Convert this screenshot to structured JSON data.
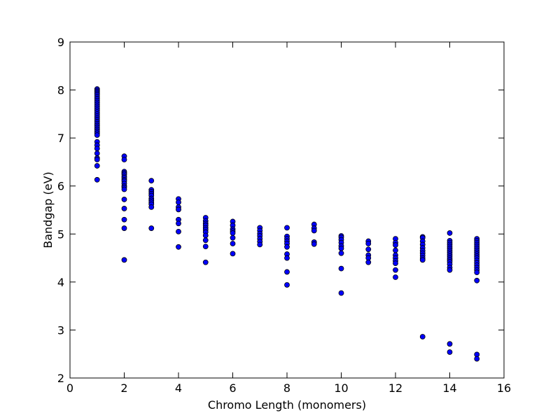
{
  "chart_data": {
    "type": "scatter",
    "title": "",
    "xlabel": "Chromo Length (monomers)",
    "ylabel": "Bandgap (eV)",
    "xlim": [
      0,
      16
    ],
    "ylim": [
      2,
      9
    ],
    "xticks": [
      "0",
      "2",
      "4",
      "6",
      "8",
      "10",
      "12",
      "14",
      "16"
    ],
    "yticks": [
      "2",
      "3",
      "4",
      "5",
      "6",
      "7",
      "8",
      "9"
    ],
    "grid": false,
    "legend": "none",
    "marker_color": "#0000ff",
    "marker_edge_color": "#000000",
    "series": [
      {
        "points": [
          {
            "x": 1,
            "y": 8.02
          },
          {
            "x": 1,
            "y": 7.99
          },
          {
            "x": 1,
            "y": 7.96
          },
          {
            "x": 1,
            "y": 7.93
          },
          {
            "x": 1,
            "y": 7.9
          },
          {
            "x": 1,
            "y": 7.86
          },
          {
            "x": 1,
            "y": 7.82
          },
          {
            "x": 1,
            "y": 7.78
          },
          {
            "x": 1,
            "y": 7.74
          },
          {
            "x": 1,
            "y": 7.7
          },
          {
            "x": 1,
            "y": 7.66
          },
          {
            "x": 1,
            "y": 7.62
          },
          {
            "x": 1,
            "y": 7.58
          },
          {
            "x": 1,
            "y": 7.54
          },
          {
            "x": 1,
            "y": 7.5
          },
          {
            "x": 1,
            "y": 7.46
          },
          {
            "x": 1,
            "y": 7.42
          },
          {
            "x": 1,
            "y": 7.38
          },
          {
            "x": 1,
            "y": 7.34
          },
          {
            "x": 1,
            "y": 7.3
          },
          {
            "x": 1,
            "y": 7.26
          },
          {
            "x": 1,
            "y": 7.22
          },
          {
            "x": 1,
            "y": 7.18
          },
          {
            "x": 1,
            "y": 7.14
          },
          {
            "x": 1,
            "y": 7.1
          },
          {
            "x": 1,
            "y": 7.06
          },
          {
            "x": 1,
            "y": 6.92
          },
          {
            "x": 1,
            "y": 6.85
          },
          {
            "x": 1,
            "y": 6.78
          },
          {
            "x": 1,
            "y": 6.68
          },
          {
            "x": 1,
            "y": 6.58
          },
          {
            "x": 1,
            "y": 6.55
          },
          {
            "x": 1,
            "y": 6.42
          },
          {
            "x": 1,
            "y": 6.13
          },
          {
            "x": 2,
            "y": 6.62
          },
          {
            "x": 2,
            "y": 6.55
          },
          {
            "x": 2,
            "y": 6.3
          },
          {
            "x": 2,
            "y": 6.27
          },
          {
            "x": 2,
            "y": 6.24
          },
          {
            "x": 2,
            "y": 6.2
          },
          {
            "x": 2,
            "y": 6.17
          },
          {
            "x": 2,
            "y": 6.13
          },
          {
            "x": 2,
            "y": 6.1
          },
          {
            "x": 2,
            "y": 6.05
          },
          {
            "x": 2,
            "y": 6.0
          },
          {
            "x": 2,
            "y": 5.97
          },
          {
            "x": 2,
            "y": 5.93
          },
          {
            "x": 2,
            "y": 5.72
          },
          {
            "x": 2,
            "y": 5.53
          },
          {
            "x": 2,
            "y": 5.3
          },
          {
            "x": 2,
            "y": 5.12
          },
          {
            "x": 2,
            "y": 4.46
          },
          {
            "x": 3,
            "y": 6.11
          },
          {
            "x": 3,
            "y": 5.92
          },
          {
            "x": 3,
            "y": 5.88
          },
          {
            "x": 3,
            "y": 5.84
          },
          {
            "x": 3,
            "y": 5.8
          },
          {
            "x": 3,
            "y": 5.74
          },
          {
            "x": 3,
            "y": 5.7
          },
          {
            "x": 3,
            "y": 5.66
          },
          {
            "x": 3,
            "y": 5.62
          },
          {
            "x": 3,
            "y": 5.56
          },
          {
            "x": 3,
            "y": 5.12
          },
          {
            "x": 4,
            "y": 5.73
          },
          {
            "x": 4,
            "y": 5.66
          },
          {
            "x": 4,
            "y": 5.56
          },
          {
            "x": 4,
            "y": 5.51
          },
          {
            "x": 4,
            "y": 5.3
          },
          {
            "x": 4,
            "y": 5.22
          },
          {
            "x": 4,
            "y": 5.05
          },
          {
            "x": 4,
            "y": 4.73
          },
          {
            "x": 5,
            "y": 5.34
          },
          {
            "x": 5,
            "y": 5.27
          },
          {
            "x": 5,
            "y": 5.22
          },
          {
            "x": 5,
            "y": 5.18
          },
          {
            "x": 5,
            "y": 5.13
          },
          {
            "x": 5,
            "y": 5.09
          },
          {
            "x": 5,
            "y": 5.04
          },
          {
            "x": 5,
            "y": 4.97
          },
          {
            "x": 5,
            "y": 4.87
          },
          {
            "x": 5,
            "y": 4.74
          },
          {
            "x": 5,
            "y": 4.41
          },
          {
            "x": 6,
            "y": 5.26
          },
          {
            "x": 6,
            "y": 5.18
          },
          {
            "x": 6,
            "y": 5.1
          },
          {
            "x": 6,
            "y": 5.06
          },
          {
            "x": 6,
            "y": 5.02
          },
          {
            "x": 6,
            "y": 4.92
          },
          {
            "x": 6,
            "y": 4.8
          },
          {
            "x": 6,
            "y": 4.59
          },
          {
            "x": 7,
            "y": 5.13
          },
          {
            "x": 7,
            "y": 5.07
          },
          {
            "x": 7,
            "y": 5.01
          },
          {
            "x": 7,
            "y": 4.96
          },
          {
            "x": 7,
            "y": 4.9
          },
          {
            "x": 7,
            "y": 4.84
          },
          {
            "x": 7,
            "y": 4.78
          },
          {
            "x": 8,
            "y": 5.13
          },
          {
            "x": 8,
            "y": 4.95
          },
          {
            "x": 8,
            "y": 4.9
          },
          {
            "x": 8,
            "y": 4.85
          },
          {
            "x": 8,
            "y": 4.8
          },
          {
            "x": 8,
            "y": 4.73
          },
          {
            "x": 8,
            "y": 4.58
          },
          {
            "x": 8,
            "y": 4.5
          },
          {
            "x": 8,
            "y": 4.21
          },
          {
            "x": 8,
            "y": 3.94
          },
          {
            "x": 9,
            "y": 5.2
          },
          {
            "x": 9,
            "y": 5.12
          },
          {
            "x": 9,
            "y": 5.07
          },
          {
            "x": 9,
            "y": 4.83
          },
          {
            "x": 9,
            "y": 4.79
          },
          {
            "x": 10,
            "y": 4.96
          },
          {
            "x": 10,
            "y": 4.93
          },
          {
            "x": 10,
            "y": 4.88
          },
          {
            "x": 10,
            "y": 4.82
          },
          {
            "x": 10,
            "y": 4.75
          },
          {
            "x": 10,
            "y": 4.7
          },
          {
            "x": 10,
            "y": 4.6
          },
          {
            "x": 10,
            "y": 4.28
          },
          {
            "x": 10,
            "y": 3.77
          },
          {
            "x": 11,
            "y": 4.85
          },
          {
            "x": 11,
            "y": 4.8
          },
          {
            "x": 11,
            "y": 4.68
          },
          {
            "x": 11,
            "y": 4.56
          },
          {
            "x": 11,
            "y": 4.5
          },
          {
            "x": 11,
            "y": 4.41
          },
          {
            "x": 12,
            "y": 4.9
          },
          {
            "x": 12,
            "y": 4.82
          },
          {
            "x": 12,
            "y": 4.77
          },
          {
            "x": 12,
            "y": 4.66
          },
          {
            "x": 12,
            "y": 4.56
          },
          {
            "x": 12,
            "y": 4.5
          },
          {
            "x": 12,
            "y": 4.44
          },
          {
            "x": 12,
            "y": 4.39
          },
          {
            "x": 12,
            "y": 4.25
          },
          {
            "x": 12,
            "y": 4.1
          },
          {
            "x": 13,
            "y": 4.94
          },
          {
            "x": 13,
            "y": 4.92
          },
          {
            "x": 13,
            "y": 4.85
          },
          {
            "x": 13,
            "y": 4.78
          },
          {
            "x": 13,
            "y": 4.71
          },
          {
            "x": 13,
            "y": 4.65
          },
          {
            "x": 13,
            "y": 4.6
          },
          {
            "x": 13,
            "y": 4.55
          },
          {
            "x": 13,
            "y": 4.5
          },
          {
            "x": 13,
            "y": 4.46
          },
          {
            "x": 13,
            "y": 2.86
          },
          {
            "x": 14,
            "y": 5.02
          },
          {
            "x": 14,
            "y": 4.86
          },
          {
            "x": 14,
            "y": 4.82
          },
          {
            "x": 14,
            "y": 4.78
          },
          {
            "x": 14,
            "y": 4.74
          },
          {
            "x": 14,
            "y": 4.7
          },
          {
            "x": 14,
            "y": 4.66
          },
          {
            "x": 14,
            "y": 4.62
          },
          {
            "x": 14,
            "y": 4.58
          },
          {
            "x": 14,
            "y": 4.54
          },
          {
            "x": 14,
            "y": 4.5
          },
          {
            "x": 14,
            "y": 4.46
          },
          {
            "x": 14,
            "y": 4.42
          },
          {
            "x": 14,
            "y": 4.37
          },
          {
            "x": 14,
            "y": 4.3
          },
          {
            "x": 14,
            "y": 4.25
          },
          {
            "x": 14,
            "y": 2.71
          },
          {
            "x": 14,
            "y": 2.54
          },
          {
            "x": 15,
            "y": 4.9
          },
          {
            "x": 15,
            "y": 4.86
          },
          {
            "x": 15,
            "y": 4.82
          },
          {
            "x": 15,
            "y": 4.78
          },
          {
            "x": 15,
            "y": 4.74
          },
          {
            "x": 15,
            "y": 4.7
          },
          {
            "x": 15,
            "y": 4.66
          },
          {
            "x": 15,
            "y": 4.62
          },
          {
            "x": 15,
            "y": 4.58
          },
          {
            "x": 15,
            "y": 4.54
          },
          {
            "x": 15,
            "y": 4.5
          },
          {
            "x": 15,
            "y": 4.45
          },
          {
            "x": 15,
            "y": 4.4
          },
          {
            "x": 15,
            "y": 4.35
          },
          {
            "x": 15,
            "y": 4.3
          },
          {
            "x": 15,
            "y": 4.25
          },
          {
            "x": 15,
            "y": 4.2
          },
          {
            "x": 15,
            "y": 4.03
          },
          {
            "x": 15,
            "y": 2.49
          },
          {
            "x": 15,
            "y": 2.4
          }
        ]
      }
    ]
  }
}
